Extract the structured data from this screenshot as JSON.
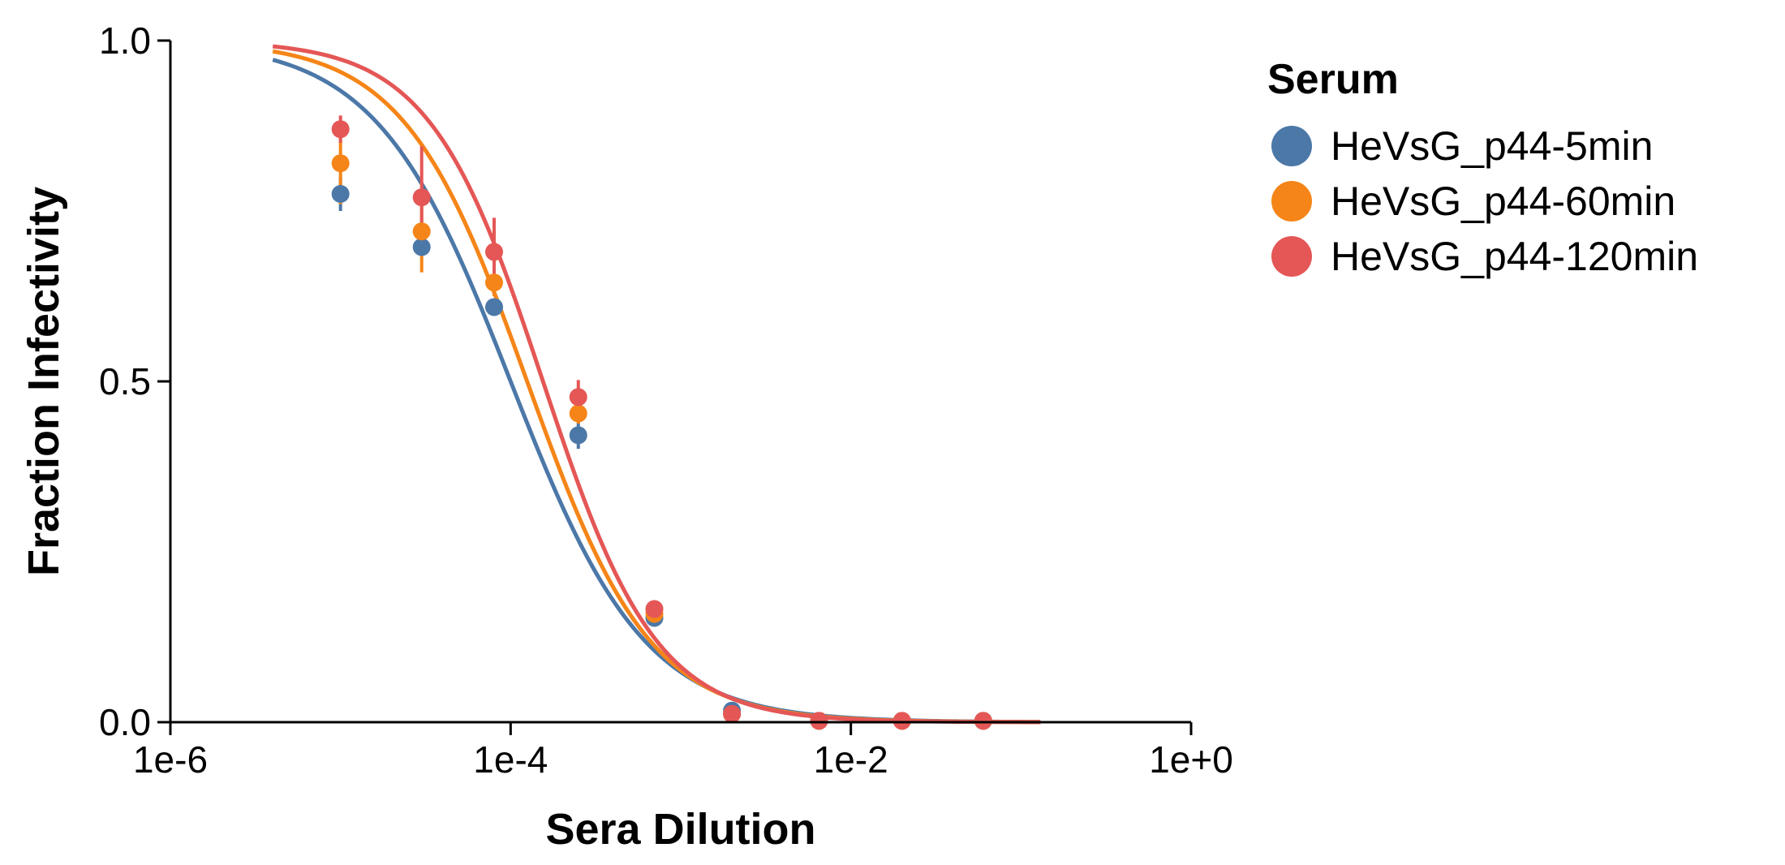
{
  "chart_data": {
    "type": "scatter",
    "xscale": "log",
    "xlabel": "Sera Dilution",
    "ylabel": "Fraction Infectivity",
    "xlim": [
      1e-06,
      1
    ],
    "ylim": [
      0,
      1
    ],
    "xticks": [
      {
        "value": 1e-06,
        "label": "1e-6"
      },
      {
        "value": 0.0001,
        "label": "1e-4"
      },
      {
        "value": 0.01,
        "label": "1e-2"
      },
      {
        "value": 1,
        "label": "1e+0"
      }
    ],
    "yticks": [
      {
        "value": 0,
        "label": "0.0"
      },
      {
        "value": 0.5,
        "label": "0.5"
      },
      {
        "value": 1,
        "label": "1.0"
      }
    ],
    "legend": {
      "title": "Serum",
      "position": "right"
    },
    "fit_range": [
      4e-06,
      0.13
    ],
    "series": [
      {
        "name": "HeVsG_p44-5min",
        "color": "#4c78a8",
        "ic50": 0.0001,
        "hill": 1.1,
        "points": [
          {
            "x": 1e-05,
            "y": 0.775,
            "err": 0.025
          },
          {
            "x": 3e-05,
            "y": 0.697,
            "err": 0.0
          },
          {
            "x": 8e-05,
            "y": 0.609,
            "err": 0.0
          },
          {
            "x": 0.00025,
            "y": 0.421,
            "err": 0.02
          },
          {
            "x": 0.0007,
            "y": 0.153,
            "err": 0.0
          },
          {
            "x": 0.002,
            "y": 0.017,
            "err": 0.0
          },
          {
            "x": 0.0065,
            "y": 0.002,
            "err": 0.0
          },
          {
            "x": 0.02,
            "y": 0.002,
            "err": 0.0
          },
          {
            "x": 0.06,
            "y": 0.002,
            "err": 0.0
          }
        ]
      },
      {
        "name": "HeVsG_p44-60min",
        "color": "#f58518",
        "ic50": 0.000125,
        "hill": 1.2,
        "points": [
          {
            "x": 1e-05,
            "y": 0.82,
            "err": 0.06
          },
          {
            "x": 3e-05,
            "y": 0.72,
            "err": 0.06
          },
          {
            "x": 8e-05,
            "y": 0.645,
            "err": 0.02
          },
          {
            "x": 0.00025,
            "y": 0.453,
            "err": 0.015
          },
          {
            "x": 0.0007,
            "y": 0.159,
            "err": 0.0
          },
          {
            "x": 0.002,
            "y": 0.012,
            "err": 0.0
          },
          {
            "x": 0.0065,
            "y": 0.002,
            "err": 0.0
          },
          {
            "x": 0.02,
            "y": 0.002,
            "err": 0.0
          },
          {
            "x": 0.06,
            "y": 0.002,
            "err": 0.0
          }
        ]
      },
      {
        "name": "HeVsG_p44-120min",
        "color": "#e45756",
        "ic50": 0.000155,
        "hill": 1.3,
        "points": [
          {
            "x": 1e-05,
            "y": 0.87,
            "err": 0.02
          },
          {
            "x": 3e-05,
            "y": 0.77,
            "err": 0.075
          },
          {
            "x": 8e-05,
            "y": 0.69,
            "err": 0.05
          },
          {
            "x": 0.00025,
            "y": 0.477,
            "err": 0.025
          },
          {
            "x": 0.0007,
            "y": 0.166,
            "err": 0.0
          },
          {
            "x": 0.002,
            "y": 0.012,
            "err": 0.0
          },
          {
            "x": 0.0065,
            "y": 0.002,
            "err": 0.0
          },
          {
            "x": 0.02,
            "y": 0.002,
            "err": 0.0
          },
          {
            "x": 0.06,
            "y": 0.002,
            "err": 0.0
          }
        ]
      }
    ]
  }
}
